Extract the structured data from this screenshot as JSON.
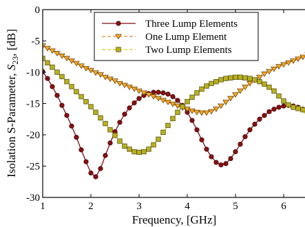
{
  "chart_data": {
    "type": "line",
    "xlabel": "Frequency, [GHz]",
    "ylabel_prefix": "Isolation S-Parameter, ",
    "ylabel_symbol": "S",
    "ylabel_subscript": "23",
    "ylabel_suffix": ", [dB]",
    "xlim": [
      1,
      6.5
    ],
    "ylim": [
      -30,
      0
    ],
    "x_ticks": [
      1,
      2,
      3,
      4,
      5,
      6
    ],
    "y_ticks": [
      0,
      -5,
      -10,
      -15,
      -20,
      -25,
      -30
    ],
    "x_tick_labels": [
      "1",
      "2",
      "3",
      "4",
      "5",
      "6"
    ],
    "y_tick_labels": [
      "0",
      "-5",
      "-10",
      "-15",
      "-20",
      "-25",
      "-30"
    ],
    "grid": false,
    "legend_position": "top-right",
    "series": [
      {
        "name": "Three Lump Elements",
        "color": "#7a0c14",
        "marker_fill": "#8b1010",
        "marker": "circle",
        "line_style": "solid",
        "x": [
          1.0,
          1.1,
          1.2,
          1.3,
          1.4,
          1.5,
          1.6,
          1.7,
          1.8,
          1.9,
          2.0,
          2.1,
          2.2,
          2.3,
          2.4,
          2.5,
          2.6,
          2.7,
          2.8,
          2.9,
          3.0,
          3.1,
          3.2,
          3.3,
          3.4,
          3.5,
          3.6,
          3.7,
          3.8,
          3.9,
          4.0,
          4.1,
          4.2,
          4.3,
          4.4,
          4.5,
          4.6,
          4.7,
          4.8,
          4.9,
          5.0,
          5.1,
          5.2,
          5.3,
          5.4,
          5.5,
          5.6,
          5.7,
          5.8,
          5.9,
          6.0,
          6.1,
          6.2,
          6.3,
          6.4,
          6.5
        ],
        "y": [
          -9.9,
          -11.0,
          -12.3,
          -13.7,
          -15.3,
          -16.9,
          -18.6,
          -20.4,
          -22.4,
          -24.3,
          -26.1,
          -26.7,
          -25.4,
          -23.3,
          -21.3,
          -19.5,
          -18.0,
          -16.7,
          -15.7,
          -14.9,
          -14.2,
          -13.7,
          -13.4,
          -13.2,
          -13.2,
          -13.3,
          -13.5,
          -13.9,
          -14.5,
          -15.3,
          -16.4,
          -17.7,
          -19.2,
          -20.8,
          -22.3,
          -23.5,
          -24.4,
          -24.8,
          -24.6,
          -23.8,
          -22.7,
          -21.5,
          -20.3,
          -19.2,
          -18.3,
          -17.5,
          -16.9,
          -16.3,
          -15.9,
          -15.6,
          -15.4,
          -15.3,
          -15.4,
          -15.6,
          -15.9,
          -16.2
        ]
      },
      {
        "name": "One Lump Element",
        "color": "#f08a24",
        "marker_fill": "#f5a623",
        "marker": "triangle-down",
        "line_style": "dashed",
        "x": [
          1.0,
          1.1,
          1.2,
          1.3,
          1.4,
          1.5,
          1.6,
          1.7,
          1.8,
          1.9,
          2.0,
          2.1,
          2.2,
          2.3,
          2.4,
          2.5,
          2.6,
          2.7,
          2.8,
          2.9,
          3.0,
          3.1,
          3.2,
          3.3,
          3.4,
          3.5,
          3.6,
          3.7,
          3.8,
          3.9,
          4.0,
          4.1,
          4.2,
          4.3,
          4.4,
          4.5,
          4.6,
          4.7,
          4.8,
          4.9,
          5.0,
          5.1,
          5.2,
          5.3,
          5.4,
          5.5,
          5.6,
          5.7,
          5.8,
          5.9,
          6.0,
          6.1,
          6.2,
          6.3,
          6.4,
          6.5
        ],
        "y": [
          -5.8,
          -6.2,
          -6.6,
          -7.0,
          -7.4,
          -7.8,
          -8.2,
          -8.6,
          -9.0,
          -9.4,
          -9.7,
          -10.1,
          -10.4,
          -10.8,
          -11.1,
          -11.4,
          -11.8,
          -12.1,
          -12.4,
          -12.7,
          -13.0,
          -13.3,
          -13.6,
          -13.9,
          -14.2,
          -14.5,
          -14.8,
          -15.1,
          -15.4,
          -15.7,
          -15.9,
          -16.2,
          -16.4,
          -16.5,
          -16.5,
          -16.3,
          -15.9,
          -15.4,
          -14.8,
          -14.2,
          -13.6,
          -13.0,
          -12.4,
          -11.8,
          -11.3,
          -10.8,
          -10.3,
          -9.9,
          -9.5,
          -9.1,
          -8.8,
          -8.5,
          -8.2,
          -7.9,
          -7.6,
          -7.2
        ]
      },
      {
        "name": "Two Lump Elements",
        "color": "#d8cc20",
        "marker_fill": "#b8b020",
        "marker": "square",
        "line_style": "dashed",
        "x": [
          1.0,
          1.1,
          1.2,
          1.3,
          1.4,
          1.5,
          1.6,
          1.7,
          1.8,
          1.9,
          2.0,
          2.1,
          2.2,
          2.3,
          2.4,
          2.5,
          2.6,
          2.7,
          2.8,
          2.9,
          3.0,
          3.1,
          3.2,
          3.3,
          3.4,
          3.5,
          3.6,
          3.7,
          3.8,
          3.9,
          4.0,
          4.1,
          4.2,
          4.3,
          4.4,
          4.5,
          4.6,
          4.7,
          4.8,
          4.9,
          5.0,
          5.1,
          5.2,
          5.3,
          5.4,
          5.5,
          5.6,
          5.7,
          5.8,
          5.9,
          6.0,
          6.1,
          6.2,
          6.3,
          6.4,
          6.5
        ],
        "y": [
          -7.8,
          -8.5,
          -9.2,
          -10.0,
          -10.7,
          -11.5,
          -12.3,
          -13.1,
          -13.9,
          -14.7,
          -15.5,
          -16.4,
          -17.3,
          -18.2,
          -19.2,
          -20.1,
          -21.0,
          -21.8,
          -22.3,
          -22.7,
          -22.8,
          -22.7,
          -22.3,
          -21.6,
          -20.7,
          -19.6,
          -18.5,
          -17.4,
          -16.4,
          -15.5,
          -14.7,
          -14.0,
          -13.3,
          -12.7,
          -12.2,
          -11.8,
          -11.5,
          -11.2,
          -11.0,
          -10.9,
          -10.8,
          -10.8,
          -10.9,
          -11.0,
          -11.2,
          -11.5,
          -11.9,
          -12.4,
          -13.0,
          -13.8,
          -14.6,
          -15.2,
          -15.6,
          -15.8,
          -16.0,
          -17.8
        ]
      }
    ]
  }
}
